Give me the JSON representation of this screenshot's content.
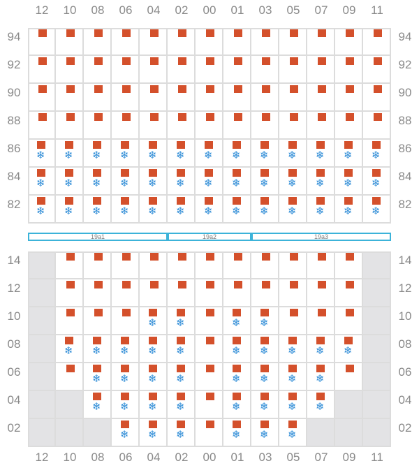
{
  "columns": [
    "12",
    "10",
    "08",
    "06",
    "04",
    "02",
    "00",
    "01",
    "03",
    "05",
    "07",
    "09",
    "11"
  ],
  "upper": {
    "rows": [
      "94",
      "92",
      "90",
      "88",
      "86",
      "84",
      "82"
    ],
    "grid": [
      [
        "s",
        "s",
        "s",
        "s",
        "s",
        "s",
        "s",
        "s",
        "s",
        "s",
        "s",
        "s",
        "s"
      ],
      [
        "s",
        "s",
        "s",
        "s",
        "s",
        "s",
        "s",
        "s",
        "s",
        "s",
        "s",
        "s",
        "s"
      ],
      [
        "s",
        "s",
        "s",
        "s",
        "s",
        "s",
        "s",
        "s",
        "s",
        "s",
        "s",
        "s",
        "s"
      ],
      [
        "s",
        "s",
        "s",
        "s",
        "s",
        "s",
        "s",
        "s",
        "s",
        "s",
        "s",
        "s",
        "s"
      ],
      [
        "sf",
        "sf",
        "sf",
        "sf",
        "sf",
        "sf",
        "sf",
        "sf",
        "sf",
        "sf",
        "sf",
        "sf",
        "sf"
      ],
      [
        "sf",
        "sf",
        "sf",
        "sf",
        "sf",
        "sf",
        "sf",
        "sf",
        "sf",
        "sf",
        "sf",
        "sf",
        "sf"
      ],
      [
        "sf",
        "sf",
        "sf",
        "sf",
        "sf",
        "sf",
        "sf",
        "sf",
        "sf",
        "sf",
        "sf",
        "sf",
        "sf"
      ]
    ]
  },
  "zones": [
    {
      "label": "19a1",
      "from": 0,
      "to": 5
    },
    {
      "label": "19a2",
      "from": 5,
      "to": 8
    },
    {
      "label": "19a3",
      "from": 8,
      "to": 13
    }
  ],
  "lower": {
    "rows": [
      "14",
      "12",
      "10",
      "08",
      "06",
      "04",
      "02"
    ],
    "grid": [
      [
        "x",
        "s",
        "s",
        "s",
        "s",
        "s",
        "s",
        "s",
        "s",
        "s",
        "s",
        "s",
        "x"
      ],
      [
        "x",
        "s",
        "s",
        "s",
        "s",
        "s",
        "s",
        "s",
        "s",
        "s",
        "s",
        "s",
        "x"
      ],
      [
        "x",
        "s",
        "s",
        "s",
        "sf",
        "sf",
        "s",
        "sf",
        "sf",
        "s",
        "s",
        "s",
        "x"
      ],
      [
        "x",
        "sf",
        "sf",
        "sf",
        "sf",
        "sf",
        "s",
        "sf",
        "sf",
        "sf",
        "sf",
        "sf",
        "x"
      ],
      [
        "x",
        "s",
        "sf",
        "sf",
        "sf",
        "sf",
        "s",
        "sf",
        "sf",
        "sf",
        "sf",
        "s",
        "x"
      ],
      [
        "x",
        "x",
        "sf",
        "sf",
        "sf",
        "sf",
        "s",
        "sf",
        "sf",
        "sf",
        "sf",
        "x",
        "x"
      ],
      [
        "x",
        "x",
        "x",
        "sf",
        "sf",
        "sf",
        "s",
        "sf",
        "sf",
        "sf",
        "x",
        "x",
        "x"
      ]
    ]
  },
  "legend": {
    "square_color": "#d4502b",
    "snow_color": "#2c8bd6",
    "blocked_color": "#e3e3e5",
    "zone_color": "#3cb3d9",
    "snow_icon": "snowflake-icon",
    "square_icon": "square-marker-icon"
  }
}
